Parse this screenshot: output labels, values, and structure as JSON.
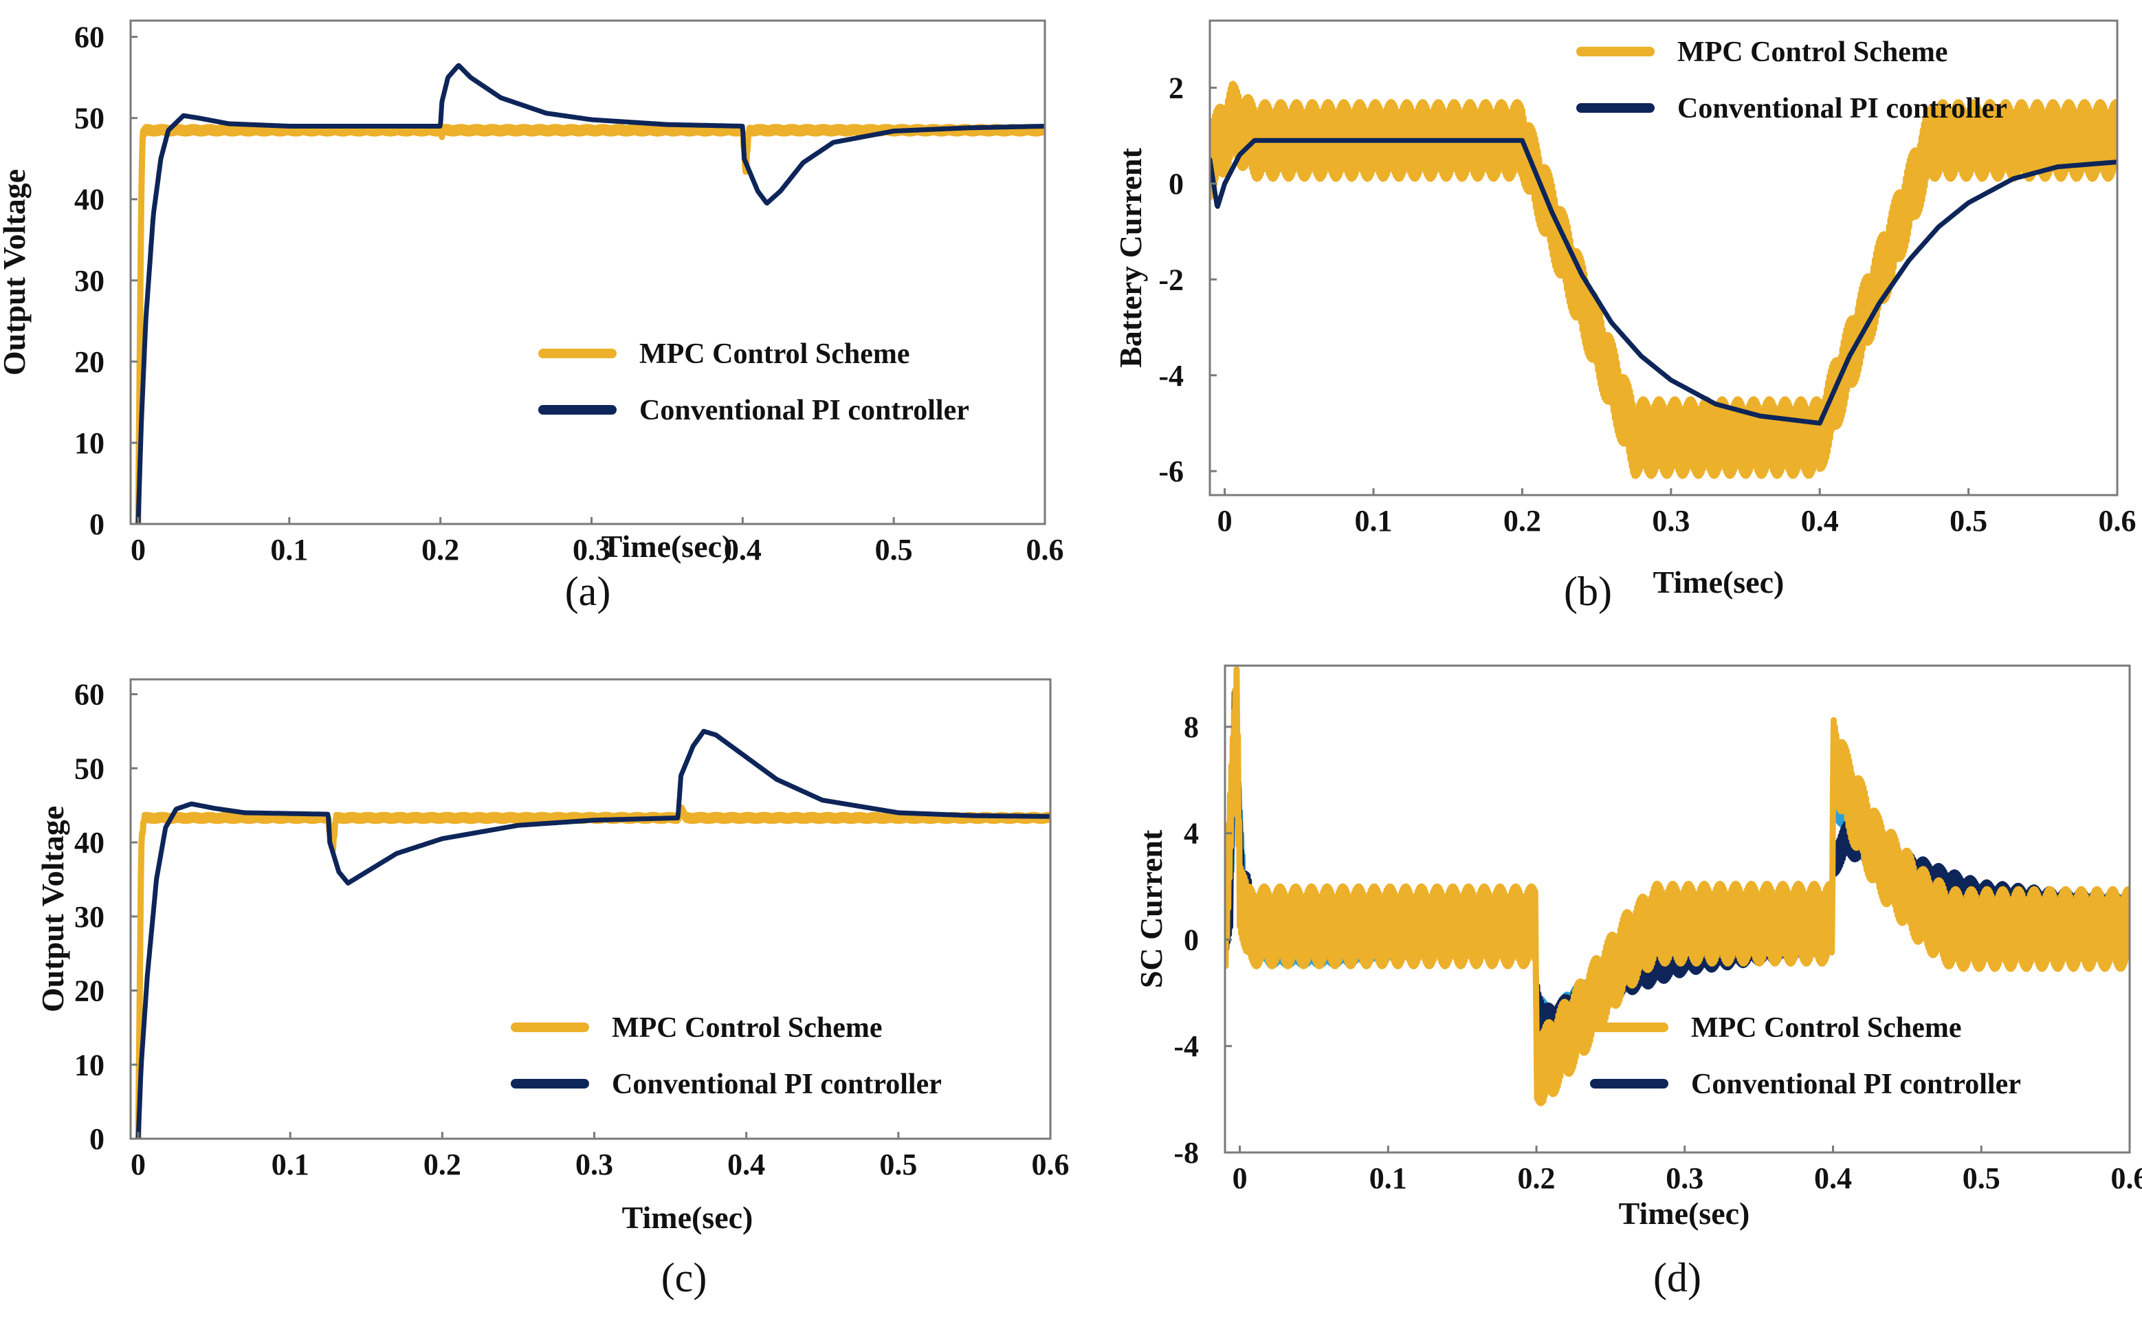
{
  "colors": {
    "mpc": "#ECB02A",
    "pi": "#0D2559",
    "pi_light": "#2AA0D6"
  },
  "chart_data": [
    {
      "id": "a",
      "type": "line",
      "caption": "(a)",
      "xlabel": "Time(sec)",
      "ylabel": "Output Voltage",
      "xlim": [
        -0.005,
        0.6
      ],
      "ylim": [
        0,
        62
      ],
      "xticks": [
        0,
        0.1,
        0.2,
        0.3,
        0.4,
        0.5,
        0.6
      ],
      "xtick_labels": [
        "0",
        "0.1",
        "0.2",
        "0.3",
        "0.4",
        "0.5",
        "0.6"
      ],
      "yticks": [
        0,
        10,
        20,
        30,
        40,
        50,
        60
      ],
      "ytick_labels": [
        "0",
        "10",
        "20",
        "30",
        "40",
        "50",
        "60"
      ],
      "legend_position": "lower-right",
      "series": [
        {
          "name": "MPC Control Scheme",
          "color_key": "mpc",
          "noise": 0.4,
          "points": [
            [
              0,
              0
            ],
            [
              0.001,
              20
            ],
            [
              0.002,
              40
            ],
            [
              0.003,
              48
            ],
            [
              0.005,
              48.5
            ],
            [
              0.2,
              48.5
            ],
            [
              0.201,
              48
            ],
            [
              0.202,
              48.5
            ],
            [
              0.4,
              48.5
            ],
            [
              0.401,
              46
            ],
            [
              0.402,
              43
            ],
            [
              0.404,
              48.5
            ],
            [
              0.6,
              48.5
            ]
          ]
        },
        {
          "name": "Conventional PI controller",
          "color_key": "pi",
          "noise": 0,
          "points": [
            [
              0,
              0
            ],
            [
              0.002,
              12
            ],
            [
              0.005,
              25
            ],
            [
              0.01,
              38
            ],
            [
              0.015,
              45
            ],
            [
              0.02,
              48.5
            ],
            [
              0.03,
              50.3
            ],
            [
              0.04,
              50
            ],
            [
              0.06,
              49.3
            ],
            [
              0.1,
              49
            ],
            [
              0.2,
              49
            ],
            [
              0.201,
              52
            ],
            [
              0.205,
              55
            ],
            [
              0.212,
              56.5
            ],
            [
              0.22,
              55
            ],
            [
              0.24,
              52.5
            ],
            [
              0.27,
              50.6
            ],
            [
              0.3,
              49.8
            ],
            [
              0.35,
              49.2
            ],
            [
              0.4,
              49
            ],
            [
              0.401,
              45
            ],
            [
              0.41,
              41
            ],
            [
              0.416,
              39.5
            ],
            [
              0.425,
              41
            ],
            [
              0.44,
              44.5
            ],
            [
              0.46,
              47
            ],
            [
              0.5,
              48.4
            ],
            [
              0.55,
              48.8
            ],
            [
              0.6,
              49
            ]
          ]
        }
      ],
      "legend": [
        "MPC Control Scheme",
        "Conventional PI controller"
      ]
    },
    {
      "id": "b",
      "type": "line",
      "caption": "(b)",
      "xlabel": "Time(sec)",
      "ylabel": "Battery Current",
      "xlim": [
        -0.01,
        0.6
      ],
      "ylim": [
        -6.5,
        3.4
      ],
      "xticks": [
        0,
        0.1,
        0.2,
        0.3,
        0.4,
        0.5,
        0.6
      ],
      "xtick_labels": [
        "0",
        "0.1",
        "0.2",
        "0.3",
        "0.4",
        "0.5",
        "0.6"
      ],
      "yticks": [
        -6,
        -4,
        -2,
        0,
        2
      ],
      "ytick_labels": [
        "-6",
        "-4",
        "-2",
        "0",
        "2"
      ],
      "legend_position": "top-right",
      "series": [
        {
          "name": "MPC Control Scheme",
          "color_key": "mpc",
          "noise": 0.8,
          "points": [
            [
              -0.01,
              0.5
            ],
            [
              0,
              1
            ],
            [
              0.005,
              1.3
            ],
            [
              0.02,
              0.9
            ],
            [
              0.2,
              0.9
            ],
            [
              0.275,
              -5.3
            ],
            [
              0.4,
              -5.3
            ],
            [
              0.475,
              0.9
            ],
            [
              0.6,
              0.9
            ]
          ]
        },
        {
          "name": "Conventional PI controller",
          "color_key": "pi",
          "noise": 0,
          "points": [
            [
              -0.01,
              0.5
            ],
            [
              -0.005,
              -0.5
            ],
            [
              0,
              0
            ],
            [
              0.005,
              0.3
            ],
            [
              0.01,
              0.6
            ],
            [
              0.02,
              0.9
            ],
            [
              0.2,
              0.9
            ],
            [
              0.22,
              -0.6
            ],
            [
              0.24,
              -1.9
            ],
            [
              0.26,
              -2.9
            ],
            [
              0.28,
              -3.6
            ],
            [
              0.3,
              -4.1
            ],
            [
              0.33,
              -4.6
            ],
            [
              0.36,
              -4.85
            ],
            [
              0.4,
              -5
            ],
            [
              0.42,
              -3.6
            ],
            [
              0.44,
              -2.5
            ],
            [
              0.46,
              -1.6
            ],
            [
              0.48,
              -0.9
            ],
            [
              0.5,
              -0.4
            ],
            [
              0.53,
              0.1
            ],
            [
              0.56,
              0.35
            ],
            [
              0.6,
              0.45
            ]
          ]
        }
      ],
      "legend": [
        "MPC Control Scheme",
        "Conventional PI controller"
      ]
    },
    {
      "id": "c",
      "type": "line",
      "caption": "(c)",
      "xlabel": "Time(sec)",
      "ylabel": "Output Voltage",
      "xlim": [
        -0.005,
        0.6
      ],
      "ylim": [
        0,
        62
      ],
      "xticks": [
        0,
        0.1,
        0.2,
        0.3,
        0.4,
        0.5,
        0.6
      ],
      "xtick_labels": [
        "0",
        "0.1",
        "0.2",
        "0.3",
        "0.4",
        "0.5",
        "0.6"
      ],
      "yticks": [
        0,
        10,
        20,
        30,
        40,
        50,
        60
      ],
      "ytick_labels": [
        "0",
        "10",
        "20",
        "30",
        "40",
        "50",
        "60"
      ],
      "legend_position": "lower-right",
      "series": [
        {
          "name": "MPC Control Scheme",
          "color_key": "mpc",
          "noise": 0.4,
          "points": [
            [
              0,
              0
            ],
            [
              0.001,
              20
            ],
            [
              0.002,
              40
            ],
            [
              0.004,
              43.3
            ],
            [
              0.125,
              43.3
            ],
            [
              0.126,
              41
            ],
            [
              0.128,
              39
            ],
            [
              0.13,
              43.3
            ],
            [
              0.355,
              43.3
            ],
            [
              0.357,
              44.5
            ],
            [
              0.36,
              43.3
            ],
            [
              0.6,
              43.3
            ]
          ]
        },
        {
          "name": "Conventional PI controller",
          "color_key": "pi",
          "noise": 0,
          "points": [
            [
              0,
              0
            ],
            [
              0.002,
              10
            ],
            [
              0.006,
              22
            ],
            [
              0.012,
              35
            ],
            [
              0.018,
              42
            ],
            [
              0.025,
              44.5
            ],
            [
              0.035,
              45.2
            ],
            [
              0.05,
              44.6
            ],
            [
              0.07,
              44
            ],
            [
              0.125,
              43.8
            ],
            [
              0.126,
              40
            ],
            [
              0.132,
              36
            ],
            [
              0.138,
              34.5
            ],
            [
              0.15,
              36
            ],
            [
              0.17,
              38.5
            ],
            [
              0.2,
              40.5
            ],
            [
              0.25,
              42.3
            ],
            [
              0.3,
              43
            ],
            [
              0.355,
              43.3
            ],
            [
              0.357,
              49
            ],
            [
              0.365,
              53
            ],
            [
              0.372,
              55
            ],
            [
              0.38,
              54.5
            ],
            [
              0.4,
              51.5
            ],
            [
              0.42,
              48.5
            ],
            [
              0.45,
              45.7
            ],
            [
              0.5,
              44
            ],
            [
              0.55,
              43.6
            ],
            [
              0.6,
              43.5
            ]
          ]
        }
      ],
      "legend": [
        "MPC Control Scheme",
        "Conventional PI controller"
      ]
    },
    {
      "id": "d",
      "type": "line",
      "caption": "(d)",
      "xlabel": "Time(sec)",
      "ylabel": "SC Current",
      "xlim": [
        -0.01,
        0.6
      ],
      "ylim": [
        -8,
        10.3
      ],
      "xticks": [
        0,
        0.1,
        0.2,
        0.3,
        0.4,
        0.5,
        0.6
      ],
      "xtick_labels": [
        "0",
        "0.1",
        "0.2",
        "0.3",
        "0.4",
        "0.5",
        "0.6"
      ],
      "yticks": [
        -8,
        -4,
        0,
        4,
        8
      ],
      "ytick_labels": [
        "-8",
        "-4",
        "0",
        "4",
        "8"
      ],
      "legend_position": "lower-right",
      "series": [
        {
          "name": "Conventional PI controller (light)",
          "color_key": "pi_light",
          "noise": 0.5,
          "in_legend": false,
          "points": [
            [
              -0.01,
              0
            ],
            [
              -0.005,
              3
            ],
            [
              -0.003,
              9
            ],
            [
              0,
              5
            ],
            [
              0.005,
              0
            ],
            [
              0.02,
              -0.5
            ],
            [
              0.06,
              -0.5
            ],
            [
              0.2,
              0
            ],
            [
              0.2,
              -2.2
            ],
            [
              0.21,
              -3.3
            ],
            [
              0.22,
              -2.5
            ],
            [
              0.25,
              -1.2
            ],
            [
              0.3,
              -0.3
            ],
            [
              0.4,
              0
            ],
            [
              0.4,
              5.2
            ],
            [
              0.42,
              3.6
            ],
            [
              0.45,
              2.5
            ],
            [
              0.5,
              1.3
            ],
            [
              0.55,
              0.9
            ],
            [
              0.6,
              0.8
            ]
          ]
        },
        {
          "name": "Conventional PI controller",
          "color_key": "pi",
          "noise": 0.7,
          "points": [
            [
              -0.01,
              0
            ],
            [
              -0.006,
              1
            ],
            [
              -0.004,
              8.7
            ],
            [
              -0.001,
              6
            ],
            [
              0.002,
              2
            ],
            [
              0.006,
              1.7
            ],
            [
              0.01,
              0.5
            ],
            [
              0.03,
              0
            ],
            [
              0.2,
              0.5
            ],
            [
              0.2,
              -2
            ],
            [
              0.205,
              -3.2
            ],
            [
              0.215,
              -3
            ],
            [
              0.23,
              -2.3
            ],
            [
              0.26,
              -1.4
            ],
            [
              0.3,
              -0.6
            ],
            [
              0.35,
              -0.2
            ],
            [
              0.4,
              0
            ],
            [
              0.4,
              3
            ],
            [
              0.41,
              3.8
            ],
            [
              0.43,
              3.3
            ],
            [
              0.45,
              2.6
            ],
            [
              0.48,
              1.9
            ],
            [
              0.5,
              1.5
            ],
            [
              0.55,
              1.2
            ],
            [
              0.6,
              1.1
            ]
          ]
        },
        {
          "name": "MPC Control Scheme",
          "color_key": "mpc",
          "noise": 1.5,
          "points": [
            [
              -0.01,
              0
            ],
            [
              -0.004,
              7
            ],
            [
              -0.002,
              9
            ],
            [
              0,
              2
            ],
            [
              0.005,
              0.5
            ],
            [
              0.2,
              0.5
            ],
            [
              0.2,
              -4.5
            ],
            [
              0.205,
              -4.8
            ],
            [
              0.23,
              -3
            ],
            [
              0.26,
              -0.5
            ],
            [
              0.28,
              0.6
            ],
            [
              0.3,
              0.6
            ],
            [
              0.4,
              0.6
            ],
            [
              0.4,
              7
            ],
            [
              0.41,
              5.5
            ],
            [
              0.43,
              3.2
            ],
            [
              0.46,
              1.2
            ],
            [
              0.48,
              0.4
            ],
            [
              0.6,
              0.4
            ]
          ]
        }
      ],
      "legend": [
        "MPC Control Scheme",
        "Conventional PI controller"
      ]
    }
  ]
}
